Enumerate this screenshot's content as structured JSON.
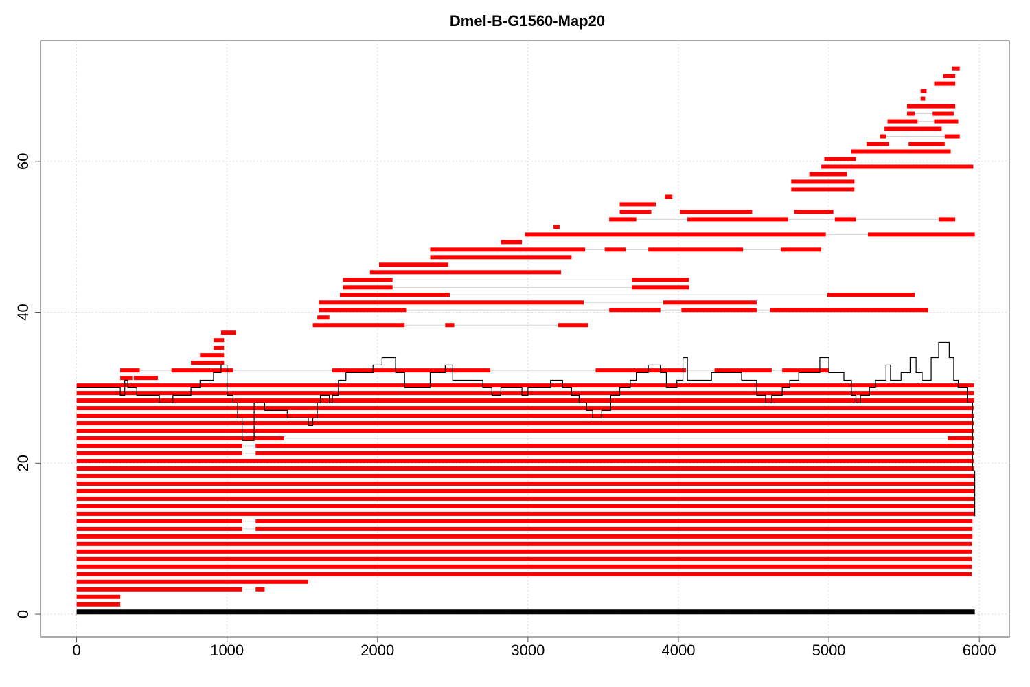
{
  "chart_data": {
    "type": "mixed",
    "title": "Dmel-B-G1560-Map20",
    "xlabel": "",
    "ylabel": "",
    "xlim": [
      -240,
      6200
    ],
    "ylim": [
      -3,
      76
    ],
    "xticks": [
      0,
      1000,
      2000,
      3000,
      4000,
      5000,
      6000
    ],
    "yticks": [
      0,
      20,
      40,
      60
    ],
    "grid": true,
    "colors": {
      "segment": "#ff0000",
      "link": "#d3d3d3",
      "coverage": "#000000",
      "reference": "#000000",
      "grid": "#d9d9d9"
    },
    "reference_bar": {
      "y": 0.3,
      "x": [
        0,
        5970
      ]
    },
    "rows": [
      {
        "y": 1.3,
        "segments": [
          [
            0,
            290
          ]
        ]
      },
      {
        "y": 2.3,
        "segments": [
          [
            0,
            290
          ]
        ]
      },
      {
        "y": 3.3,
        "segments": [
          [
            0,
            1100
          ],
          [
            1190,
            1250
          ]
        ]
      },
      {
        "y": 4.3,
        "segments": [
          [
            0,
            1540
          ]
        ]
      },
      {
        "y": 5.3,
        "segments": [
          [
            0,
            5950
          ]
        ]
      },
      {
        "y": 6.3,
        "segments": [
          [
            0,
            5950
          ]
        ]
      },
      {
        "y": 7.3,
        "segments": [
          [
            0,
            5950
          ]
        ]
      },
      {
        "y": 8.3,
        "segments": [
          [
            0,
            5950
          ]
        ]
      },
      {
        "y": 9.3,
        "segments": [
          [
            0,
            5950
          ]
        ]
      },
      {
        "y": 10.3,
        "segments": [
          [
            0,
            5955
          ]
        ]
      },
      {
        "y": 11.3,
        "segments": [
          [
            0,
            1100
          ],
          [
            1190,
            5955
          ]
        ]
      },
      {
        "y": 12.3,
        "segments": [
          [
            0,
            1100
          ],
          [
            1190,
            5955
          ]
        ]
      },
      {
        "y": 13.3,
        "segments": [
          [
            0,
            5965
          ]
        ]
      },
      {
        "y": 14.3,
        "segments": [
          [
            0,
            5965
          ]
        ]
      },
      {
        "y": 15.3,
        "segments": [
          [
            0,
            5965
          ]
        ]
      },
      {
        "y": 16.3,
        "segments": [
          [
            0,
            5965
          ]
        ]
      },
      {
        "y": 17.3,
        "segments": [
          [
            0,
            5965
          ]
        ]
      },
      {
        "y": 18.3,
        "segments": [
          [
            0,
            5965
          ]
        ]
      },
      {
        "y": 19.3,
        "segments": [
          [
            0,
            5965
          ]
        ]
      },
      {
        "y": 20.3,
        "segments": [
          [
            0,
            5965
          ]
        ]
      },
      {
        "y": 21.3,
        "segments": [
          [
            0,
            1100
          ],
          [
            1190,
            5965
          ]
        ]
      },
      {
        "y": 22.3,
        "segments": [
          [
            0,
            1100
          ],
          [
            1190,
            5965
          ]
        ]
      },
      {
        "y": 23.3,
        "segments": [
          [
            0,
            1380
          ],
          [
            5790,
            5965
          ]
        ]
      },
      {
        "y": 24.3,
        "segments": [
          [
            0,
            5965
          ]
        ]
      },
      {
        "y": 25.3,
        "segments": [
          [
            0,
            5965
          ]
        ]
      },
      {
        "y": 26.3,
        "segments": [
          [
            0,
            5965
          ]
        ]
      },
      {
        "y": 27.3,
        "segments": [
          [
            0,
            5965
          ]
        ]
      },
      {
        "y": 28.3,
        "segments": [
          [
            0,
            5965
          ]
        ]
      },
      {
        "y": 29.3,
        "segments": [
          [
            0,
            5965
          ]
        ]
      },
      {
        "y": 30.3,
        "segments": [
          [
            0,
            5965
          ]
        ]
      },
      {
        "y": 31.3,
        "segments": [
          [
            290,
            370
          ],
          [
            380,
            540
          ]
        ]
      },
      {
        "y": 32.3,
        "segments": [
          [
            290,
            420
          ],
          [
            630,
            1040
          ],
          [
            1700,
            2750
          ],
          [
            3450,
            4050
          ],
          [
            4240,
            4620
          ],
          [
            4690,
            5000
          ]
        ]
      },
      {
        "y": 33.3,
        "segments": [
          [
            760,
            980
          ]
        ]
      },
      {
        "y": 34.3,
        "segments": [
          [
            820,
            980
          ]
        ]
      },
      {
        "y": 35.3,
        "segments": [
          [
            910,
            980
          ]
        ]
      },
      {
        "y": 36.3,
        "segments": [
          [
            910,
            980
          ]
        ]
      },
      {
        "y": 37.3,
        "segments": [
          [
            960,
            1060
          ]
        ]
      },
      {
        "y": 38.3,
        "segments": [
          [
            1570,
            2180
          ],
          [
            2450,
            2510
          ],
          [
            3200,
            3400
          ]
        ]
      },
      {
        "y": 39.3,
        "segments": [
          [
            1600,
            1680
          ]
        ]
      },
      {
        "y": 40.3,
        "segments": [
          [
            1610,
            2190
          ],
          [
            3540,
            3880
          ],
          [
            4020,
            4520
          ],
          [
            4610,
            5660
          ]
        ]
      },
      {
        "y": 41.3,
        "segments": [
          [
            1610,
            3370
          ],
          [
            3900,
            4520
          ]
        ]
      },
      {
        "y": 42.3,
        "segments": [
          [
            1750,
            2480
          ],
          [
            4990,
            5570
          ]
        ]
      },
      {
        "y": 43.3,
        "segments": [
          [
            1770,
            2100
          ],
          [
            3690,
            4070
          ]
        ]
      },
      {
        "y": 44.3,
        "segments": [
          [
            1770,
            2100
          ],
          [
            3690,
            4070
          ]
        ]
      },
      {
        "y": 45.3,
        "segments": [
          [
            1950,
            3220
          ]
        ]
      },
      {
        "y": 46.3,
        "segments": [
          [
            2010,
            2470
          ]
        ]
      },
      {
        "y": 47.3,
        "segments": [
          [
            2350,
            3290
          ]
        ]
      },
      {
        "y": 48.3,
        "segments": [
          [
            2350,
            3380
          ],
          [
            3510,
            3650
          ],
          [
            3800,
            4430
          ],
          [
            4680,
            4950
          ]
        ]
      },
      {
        "y": 49.3,
        "segments": [
          [
            2820,
            2960
          ]
        ]
      },
      {
        "y": 50.3,
        "segments": [
          [
            2980,
            4980
          ],
          [
            5260,
            5970
          ]
        ]
      },
      {
        "y": 51.3,
        "segments": [
          [
            3170,
            3210
          ]
        ]
      },
      {
        "y": 52.3,
        "segments": [
          [
            3540,
            3720
          ],
          [
            4060,
            4730
          ],
          [
            5040,
            5180
          ],
          [
            5730,
            5840
          ]
        ]
      },
      {
        "y": 53.3,
        "segments": [
          [
            3610,
            3820
          ],
          [
            4010,
            4490
          ],
          [
            4770,
            5030
          ]
        ]
      },
      {
        "y": 54.3,
        "segments": [
          [
            3610,
            3850
          ]
        ]
      },
      {
        "y": 55.3,
        "segments": [
          [
            3910,
            3960
          ]
        ]
      },
      {
        "y": 56.3,
        "segments": [
          [
            4750,
            5170
          ]
        ]
      },
      {
        "y": 57.3,
        "segments": [
          [
            4750,
            5170
          ]
        ]
      },
      {
        "y": 58.3,
        "segments": [
          [
            4870,
            5120
          ]
        ]
      },
      {
        "y": 59.3,
        "segments": [
          [
            4950,
            5960
          ]
        ]
      },
      {
        "y": 60.3,
        "segments": [
          [
            4970,
            5180
          ]
        ]
      },
      {
        "y": 61.3,
        "segments": [
          [
            5150,
            5810
          ]
        ]
      },
      {
        "y": 62.3,
        "segments": [
          [
            5250,
            5400
          ],
          [
            5530,
            5770
          ]
        ]
      },
      {
        "y": 63.3,
        "segments": [
          [
            5340,
            5380
          ],
          [
            5770,
            5870
          ]
        ]
      },
      {
        "y": 64.3,
        "segments": [
          [
            5370,
            5750
          ]
        ]
      },
      {
        "y": 65.3,
        "segments": [
          [
            5390,
            5590
          ],
          [
            5700,
            5860
          ]
        ]
      },
      {
        "y": 66.3,
        "segments": [
          [
            5520,
            5570
          ],
          [
            5690,
            5830
          ]
        ]
      },
      {
        "y": 67.3,
        "segments": [
          [
            5520,
            5840
          ]
        ]
      },
      {
        "y": 68.3,
        "segments": [
          [
            5610,
            5640
          ]
        ]
      },
      {
        "y": 69.3,
        "segments": [
          [
            5610,
            5650
          ]
        ]
      },
      {
        "y": 70.3,
        "segments": [
          [
            5700,
            5840
          ]
        ]
      },
      {
        "y": 71.3,
        "segments": [
          [
            5760,
            5840
          ]
        ]
      },
      {
        "y": 72.3,
        "segments": [
          [
            5820,
            5870
          ]
        ]
      }
    ],
    "coverage": {
      "x": [
        0,
        290,
        320,
        340,
        400,
        420,
        550,
        640,
        760,
        820,
        910,
        960,
        1000,
        1040,
        1070,
        1100,
        1180,
        1250,
        1400,
        1540,
        1570,
        1600,
        1620,
        1680,
        1700,
        1740,
        1790,
        1970,
        2030,
        2120,
        2180,
        2350,
        2450,
        2500,
        2700,
        2760,
        2820,
        2960,
        3000,
        3150,
        3230,
        3290,
        3340,
        3390,
        3430,
        3490,
        3550,
        3610,
        3680,
        3720,
        3800,
        3880,
        3920,
        3990,
        4030,
        4060,
        4220,
        4420,
        4520,
        4580,
        4620,
        4690,
        4740,
        4800,
        4940,
        5000,
        5100,
        5150,
        5180,
        5210,
        5270,
        5310,
        5380,
        5410,
        5480,
        5540,
        5580,
        5620,
        5680,
        5730,
        5800,
        5830,
        5860,
        5920,
        5955,
        5970
      ],
      "y": [
        30,
        29,
        31,
        30,
        29,
        29,
        28,
        29,
        30,
        31,
        32,
        33,
        29,
        28,
        26,
        23,
        28,
        27,
        26,
        25,
        26,
        28,
        29,
        28,
        29,
        31,
        32,
        33,
        34,
        32,
        30,
        32,
        33,
        31,
        30,
        29,
        30,
        29,
        30,
        31,
        30,
        29,
        28,
        27,
        26,
        27,
        29,
        30,
        31,
        32,
        33,
        32,
        30,
        31,
        34,
        31,
        32,
        31,
        29,
        28,
        29,
        30,
        31,
        32,
        34,
        32,
        31,
        29,
        28,
        29,
        30,
        31,
        33,
        31,
        32,
        34,
        32,
        31,
        34,
        36,
        34,
        31,
        30,
        28,
        19,
        13
      ]
    }
  }
}
